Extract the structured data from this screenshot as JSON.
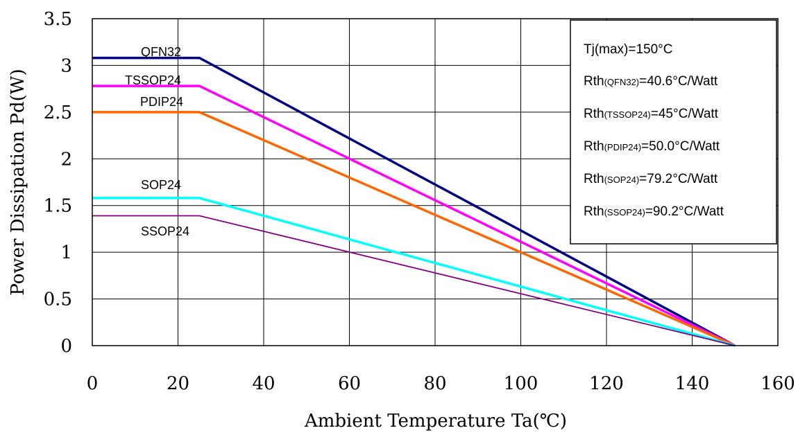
{
  "chart_data": {
    "type": "line",
    "xlabel": "Ambient Temperature Ta(℃)",
    "ylabel": "Power Dissipation Pd(W)",
    "xlim": [
      0,
      160
    ],
    "ylim": [
      0,
      3.5
    ],
    "x_ticks": [
      0,
      20,
      40,
      60,
      80,
      100,
      120,
      140,
      160
    ],
    "y_ticks": [
      0,
      0.5,
      1,
      1.5,
      2,
      2.5,
      3,
      3.5
    ],
    "grid": true,
    "series": [
      {
        "name": "QFN32",
        "color": "#000080",
        "x": [
          0,
          25,
          150
        ],
        "y": [
          3.08,
          3.08,
          0
        ]
      },
      {
        "name": "TSSOP24",
        "color": "#ff00ff",
        "x": [
          0,
          25,
          150
        ],
        "y": [
          2.78,
          2.78,
          0
        ]
      },
      {
        "name": "PDIP24",
        "color": "#ff6600",
        "x": [
          0,
          25,
          150
        ],
        "y": [
          2.5,
          2.5,
          0
        ]
      },
      {
        "name": "SOP24",
        "color": "#00ffff",
        "x": [
          0,
          25,
          150
        ],
        "y": [
          1.58,
          1.58,
          0
        ]
      },
      {
        "name": "SSOP24",
        "color": "#800080",
        "x": [
          0,
          25,
          150
        ],
        "y": [
          1.39,
          1.39,
          0
        ]
      }
    ],
    "annotation_box": {
      "position": "top-right",
      "lines": [
        {
          "main": "Tj(max)=150°C",
          "sub": "",
          "rest": ""
        },
        {
          "main": "Rth",
          "sub": "(QFN32)",
          "rest": "=40.6°C/Watt"
        },
        {
          "main": "Rth",
          "sub": "(TSSOP24)",
          "rest": "=45°C/Watt"
        },
        {
          "main": "Rth",
          "sub": "(PDIP24)",
          "rest": "=50.0°C/Watt"
        },
        {
          "main": "Rth",
          "sub": "(SOP24)",
          "rest": "=79.2°C/Watt"
        },
        {
          "main": "Rth",
          "sub": "(SSOP24)",
          "rest": "=90.2°C/Watt"
        }
      ]
    }
  }
}
